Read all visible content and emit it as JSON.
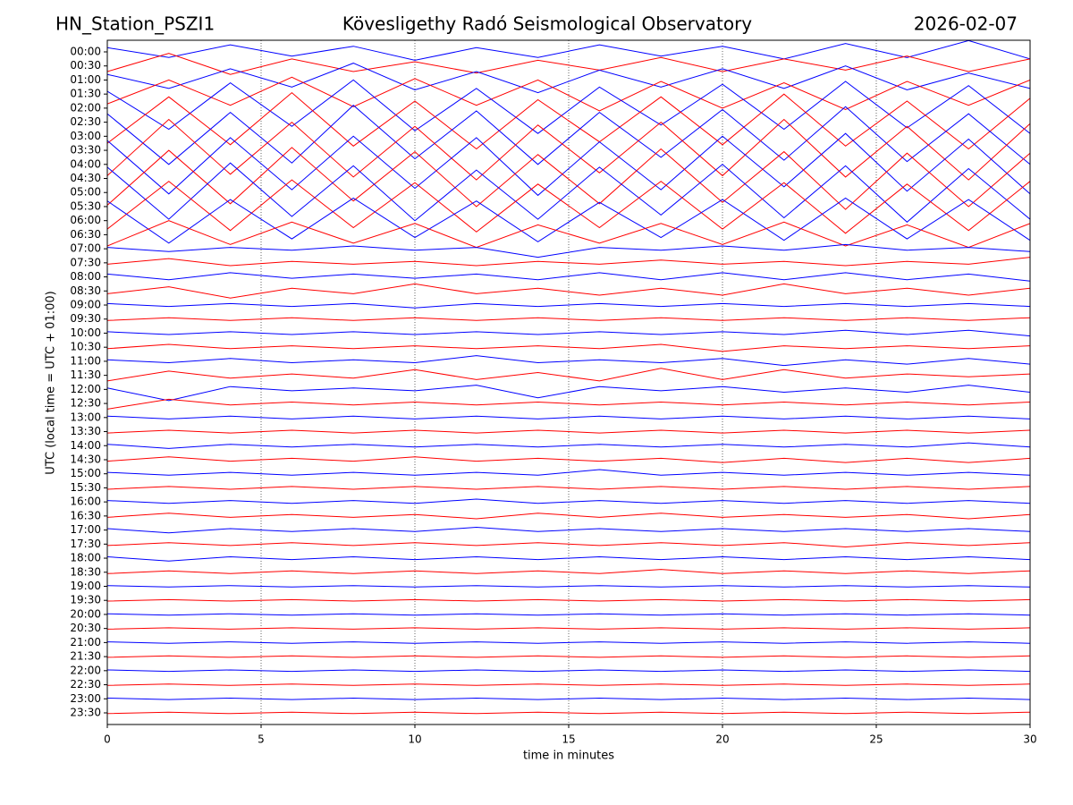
{
  "chart_data": {
    "type": "helicorder",
    "title": "Kövesligethy Radó Seismological Observatory",
    "station": "HN_Station_PSZI1",
    "date": "2026-02-07",
    "xlabel": "time in minutes",
    "ylabel": "UTC (local time = UTC + 01:00)",
    "xlim": [
      0,
      30
    ],
    "xticks": [
      0,
      5,
      10,
      15,
      20,
      25,
      30
    ],
    "grid": true,
    "x": [
      0,
      2,
      4,
      6,
      8,
      10,
      12,
      14,
      16,
      18,
      20,
      22,
      24,
      26,
      28,
      30
    ],
    "series": [
      {
        "name": "00:00",
        "color": "#0000ff",
        "values": [
          0.3,
          -0.4,
          0.5,
          -0.3,
          0.4,
          -0.6,
          0.3,
          -0.4,
          0.5,
          -0.3,
          0.4,
          -0.5,
          0.6,
          -0.4,
          0.8,
          -0.5
        ]
      },
      {
        "name": "00:30",
        "color": "#ff0000",
        "values": [
          -0.4,
          0.9,
          -0.6,
          0.5,
          -0.4,
          0.3,
          -0.5,
          0.4,
          -0.3,
          0.6,
          -0.4,
          0.5,
          -0.3,
          0.7,
          -0.4,
          0.5
        ]
      },
      {
        "name": "01:00",
        "color": "#0000ff",
        "values": [
          0.4,
          -0.6,
          0.8,
          -0.5,
          1.2,
          -0.7,
          0.6,
          -0.9,
          0.7,
          -0.5,
          0.8,
          -0.6,
          1.0,
          -0.7,
          0.5,
          -0.6
        ]
      },
      {
        "name": "01:30",
        "color": "#ff0000",
        "values": [
          -0.7,
          1.0,
          -0.8,
          1.2,
          -0.9,
          1.1,
          -0.8,
          1.0,
          -1.2,
          0.9,
          -1.0,
          0.8,
          -1.1,
          0.9,
          -0.8,
          1.0
        ]
      },
      {
        "name": "02:00",
        "color": "#0000ff",
        "values": [
          1.2,
          -1.5,
          1.8,
          -1.3,
          2.0,
          -1.6,
          1.4,
          -1.8,
          1.5,
          -1.2,
          1.7,
          -1.5,
          1.9,
          -1.4,
          1.6,
          -1.8
        ]
      },
      {
        "name": "02:30",
        "color": "#ff0000",
        "values": [
          -1.5,
          1.8,
          -1.6,
          2.1,
          -1.7,
          1.5,
          -1.9,
          1.6,
          -1.4,
          1.8,
          -1.6,
          2.0,
          -1.7,
          1.5,
          -1.9,
          1.7
        ]
      },
      {
        "name": "03:00",
        "color": "#0000ff",
        "values": [
          1.6,
          -2.0,
          1.7,
          -1.9,
          2.2,
          -1.6,
          1.8,
          -2.0,
          1.7,
          -1.5,
          1.9,
          -1.7,
          2.1,
          -1.8,
          1.6,
          -2.0
        ]
      },
      {
        "name": "03:30",
        "color": "#ff0000",
        "values": [
          -1.8,
          2.2,
          -1.7,
          2.0,
          -1.9,
          1.7,
          -2.1,
          1.8,
          -1.6,
          2.0,
          -1.8,
          2.2,
          -1.9,
          1.7,
          -2.1,
          1.9
        ]
      },
      {
        "name": "04:00",
        "color": "#0000ff",
        "values": [
          1.7,
          -2.1,
          1.9,
          -1.8,
          2.0,
          -1.7,
          1.9,
          -2.2,
          1.6,
          -1.8,
          2.0,
          -1.6,
          2.2,
          -1.9,
          1.8,
          -2.1
        ]
      },
      {
        "name": "04:30",
        "color": "#ff0000",
        "values": [
          -1.9,
          2.0,
          -1.8,
          2.2,
          -1.6,
          1.9,
          -2.0,
          1.7,
          -1.8,
          2.1,
          -1.7,
          1.9,
          -2.2,
          1.8,
          -2.0,
          1.8
        ]
      },
      {
        "name": "05:00",
        "color": "#0000ff",
        "values": [
          1.8,
          -1.9,
          2.1,
          -1.7,
          1.9,
          -2.0,
          1.6,
          -1.9,
          1.8,
          -1.6,
          2.0,
          -1.8,
          1.9,
          -2.1,
          1.7,
          -1.9
        ]
      },
      {
        "name": "05:30",
        "color": "#ff0000",
        "values": [
          -1.6,
          1.8,
          -1.7,
          1.9,
          -1.5,
          1.7,
          -1.8,
          1.6,
          -1.5,
          1.8,
          -1.6,
          1.7,
          -1.9,
          1.6,
          -1.7,
          1.8
        ]
      },
      {
        "name": "06:00",
        "color": "#0000ff",
        "values": [
          1.4,
          -1.6,
          1.5,
          -1.3,
          1.6,
          -1.2,
          1.4,
          -1.5,
          1.3,
          -1.2,
          1.5,
          -1.4,
          1.6,
          -1.3,
          1.5,
          -1.4
        ]
      },
      {
        "name": "06:30",
        "color": "#ff0000",
        "values": [
          -0.8,
          1.0,
          -0.7,
          0.9,
          -0.6,
          0.8,
          -0.9,
          0.7,
          -0.6,
          0.8,
          -0.7,
          0.9,
          -0.8,
          0.7,
          -0.9,
          0.8
        ]
      },
      {
        "name": "07:00",
        "color": "#0000ff",
        "values": [
          0.1,
          -0.2,
          0.1,
          -0.1,
          0.2,
          -0.1,
          0.1,
          -0.6,
          0.1,
          -0.1,
          0.2,
          -0.1,
          0.3,
          -0.1,
          0.1,
          -0.2
        ]
      },
      {
        "name": "07:30",
        "color": "#ff0000",
        "values": [
          -0.1,
          0.3,
          -0.2,
          0.1,
          -0.1,
          0.1,
          -0.2,
          0.1,
          -0.1,
          0.2,
          -0.1,
          0.1,
          -0.2,
          0.1,
          -0.1,
          0.4
        ]
      },
      {
        "name": "08:00",
        "color": "#0000ff",
        "values": [
          0.2,
          -0.2,
          0.3,
          -0.1,
          0.2,
          -0.1,
          0.2,
          -0.2,
          0.3,
          -0.2,
          0.3,
          -0.2,
          0.3,
          -0.2,
          0.2,
          -0.3
        ]
      },
      {
        "name": "08:30",
        "color": "#ff0000",
        "values": [
          -0.2,
          0.3,
          -0.5,
          0.2,
          -0.2,
          0.5,
          -0.2,
          0.2,
          -0.3,
          0.2,
          -0.3,
          0.5,
          -0.2,
          0.2,
          -0.3,
          0.2
        ]
      },
      {
        "name": "09:00",
        "color": "#0000ff",
        "values": [
          0.1,
          -0.1,
          0.1,
          -0.1,
          0.1,
          -0.2,
          0.1,
          -0.1,
          0.1,
          -0.1,
          0.1,
          -0.1,
          0.1,
          -0.1,
          0.1,
          -0.1
        ]
      },
      {
        "name": "09:30",
        "color": "#ff0000",
        "values": [
          -0.1,
          0.1,
          -0.1,
          0.1,
          -0.1,
          0.1,
          -0.1,
          0.1,
          -0.1,
          0.1,
          -0.1,
          0.1,
          -0.1,
          0.1,
          -0.1,
          0.1
        ]
      },
      {
        "name": "10:00",
        "color": "#0000ff",
        "values": [
          0.1,
          -0.1,
          0.1,
          -0.1,
          0.1,
          -0.1,
          0.1,
          -0.1,
          0.1,
          -0.1,
          0.1,
          -0.1,
          0.2,
          -0.1,
          0.2,
          -0.2
        ]
      },
      {
        "name": "10:30",
        "color": "#ff0000",
        "values": [
          -0.1,
          0.2,
          -0.1,
          0.1,
          -0.1,
          0.1,
          -0.1,
          0.1,
          -0.1,
          0.2,
          -0.3,
          0.1,
          -0.1,
          0.1,
          -0.1,
          0.1
        ]
      },
      {
        "name": "11:00",
        "color": "#0000ff",
        "values": [
          0.1,
          -0.1,
          0.2,
          -0.1,
          0.1,
          -0.1,
          0.4,
          -0.1,
          0.1,
          -0.1,
          0.2,
          -0.3,
          0.1,
          -0.2,
          0.2,
          -0.2
        ]
      },
      {
        "name": "11:30",
        "color": "#ff0000",
        "values": [
          -0.4,
          0.3,
          -0.2,
          0.1,
          -0.2,
          0.4,
          -0.3,
          0.2,
          -0.4,
          0.5,
          -0.3,
          0.4,
          -0.2,
          0.1,
          -0.1,
          0.1
        ]
      },
      {
        "name": "12:00",
        "color": "#0000ff",
        "values": [
          0.1,
          -0.8,
          0.2,
          -0.1,
          0.1,
          -0.1,
          0.3,
          -0.6,
          0.2,
          -0.1,
          0.2,
          -0.2,
          0.1,
          -0.2,
          0.3,
          -0.2
        ]
      },
      {
        "name": "12:30",
        "color": "#ff0000",
        "values": [
          -0.4,
          0.3,
          -0.1,
          0.1,
          -0.1,
          0.1,
          -0.1,
          0.1,
          -0.1,
          0.1,
          -0.1,
          0.1,
          -0.1,
          0.1,
          -0.1,
          0.1
        ]
      },
      {
        "name": "13:00",
        "color": "#0000ff",
        "values": [
          0.1,
          -0.1,
          0.1,
          -0.1,
          0.1,
          -0.1,
          0.1,
          -0.1,
          0.1,
          -0.1,
          0.1,
          -0.1,
          0.1,
          -0.1,
          0.1,
          -0.1
        ]
      },
      {
        "name": "13:30",
        "color": "#ff0000",
        "values": [
          -0.1,
          0.1,
          -0.1,
          0.1,
          -0.1,
          0.1,
          -0.1,
          0.1,
          -0.1,
          0.1,
          -0.1,
          0.1,
          -0.1,
          0.1,
          -0.1,
          0.1
        ]
      },
      {
        "name": "14:00",
        "color": "#0000ff",
        "values": [
          0.1,
          -0.2,
          0.1,
          -0.1,
          0.1,
          -0.1,
          0.1,
          -0.1,
          0.1,
          -0.1,
          0.1,
          -0.1,
          0.1,
          -0.1,
          0.2,
          -0.1
        ]
      },
      {
        "name": "14:30",
        "color": "#ff0000",
        "values": [
          -0.1,
          0.2,
          -0.1,
          0.1,
          -0.1,
          0.2,
          -0.1,
          0.1,
          -0.1,
          0.1,
          -0.2,
          0.1,
          -0.2,
          0.1,
          -0.2,
          0.1
        ]
      },
      {
        "name": "15:00",
        "color": "#0000ff",
        "values": [
          0.1,
          -0.1,
          0.1,
          -0.1,
          0.1,
          -0.1,
          0.1,
          -0.1,
          0.3,
          -0.1,
          0.1,
          -0.1,
          0.1,
          -0.1,
          0.1,
          -0.1
        ]
      },
      {
        "name": "15:30",
        "color": "#ff0000",
        "values": [
          -0.1,
          0.1,
          -0.1,
          0.1,
          -0.1,
          0.1,
          -0.1,
          0.1,
          -0.1,
          0.1,
          -0.1,
          0.1,
          -0.1,
          0.1,
          -0.1,
          0.1
        ]
      },
      {
        "name": "16:00",
        "color": "#0000ff",
        "values": [
          0.1,
          -0.1,
          0.1,
          -0.1,
          0.1,
          -0.1,
          0.2,
          -0.1,
          0.1,
          -0.1,
          0.1,
          -0.1,
          0.1,
          -0.1,
          0.1,
          -0.1
        ]
      },
      {
        "name": "16:30",
        "color": "#ff0000",
        "values": [
          -0.1,
          0.2,
          -0.1,
          0.1,
          -0.1,
          0.1,
          -0.2,
          0.2,
          -0.1,
          0.2,
          -0.1,
          0.1,
          -0.1,
          0.1,
          -0.2,
          0.1
        ]
      },
      {
        "name": "17:00",
        "color": "#0000ff",
        "values": [
          0.1,
          -0.2,
          0.1,
          -0.1,
          0.1,
          -0.1,
          0.2,
          -0.1,
          0.1,
          -0.1,
          0.1,
          -0.1,
          0.1,
          -0.1,
          0.1,
          -0.1
        ]
      },
      {
        "name": "17:30",
        "color": "#ff0000",
        "values": [
          -0.1,
          0.1,
          -0.1,
          0.1,
          -0.1,
          0.1,
          -0.1,
          0.1,
          -0.1,
          0.1,
          -0.1,
          0.1,
          -0.2,
          0.1,
          -0.1,
          0.1
        ]
      },
      {
        "name": "18:00",
        "color": "#0000ff",
        "values": [
          0.1,
          -0.2,
          0.1,
          -0.1,
          0.1,
          -0.1,
          0.1,
          -0.1,
          0.1,
          -0.1,
          0.1,
          -0.1,
          0.1,
          -0.1,
          0.1,
          -0.1
        ]
      },
      {
        "name": "18:30",
        "color": "#ff0000",
        "values": [
          -0.1,
          0.1,
          -0.1,
          0.1,
          -0.1,
          0.1,
          -0.1,
          0.1,
          -0.1,
          0.2,
          -0.1,
          0.1,
          -0.1,
          0.1,
          -0.1,
          0.1
        ]
      },
      {
        "name": "19:00",
        "color": "#0000ff",
        "values": [
          0.05,
          -0.05,
          0.05,
          -0.05,
          0.05,
          -0.05,
          0.05,
          -0.05,
          0.05,
          -0.05,
          0.05,
          -0.05,
          0.05,
          -0.05,
          0.05,
          -0.05
        ]
      },
      {
        "name": "19:30",
        "color": "#ff0000",
        "values": [
          -0.05,
          0.05,
          -0.05,
          0.05,
          -0.05,
          0.05,
          -0.05,
          0.05,
          -0.05,
          0.05,
          -0.05,
          0.05,
          -0.05,
          0.05,
          -0.05,
          0.05
        ]
      },
      {
        "name": "20:00",
        "color": "#0000ff",
        "values": [
          0.05,
          -0.05,
          0.05,
          -0.05,
          0.05,
          -0.05,
          0.05,
          -0.05,
          0.05,
          -0.05,
          0.05,
          -0.05,
          0.05,
          -0.05,
          0.05,
          -0.05
        ]
      },
      {
        "name": "20:30",
        "color": "#ff0000",
        "values": [
          -0.05,
          0.05,
          -0.05,
          0.05,
          -0.05,
          0.05,
          -0.05,
          0.05,
          -0.05,
          0.05,
          -0.05,
          0.05,
          -0.05,
          0.05,
          -0.05,
          0.05
        ]
      },
      {
        "name": "21:00",
        "color": "#0000ff",
        "values": [
          0.05,
          -0.05,
          0.05,
          -0.05,
          0.05,
          -0.05,
          0.05,
          -0.05,
          0.05,
          -0.05,
          0.05,
          -0.05,
          0.05,
          -0.05,
          0.05,
          -0.05
        ]
      },
      {
        "name": "21:30",
        "color": "#ff0000",
        "values": [
          -0.05,
          0.05,
          -0.05,
          0.05,
          -0.05,
          0.05,
          -0.05,
          0.05,
          -0.05,
          0.05,
          -0.05,
          0.05,
          -0.05,
          0.05,
          -0.05,
          0.05
        ]
      },
      {
        "name": "22:00",
        "color": "#0000ff",
        "values": [
          0.05,
          -0.05,
          0.05,
          -0.05,
          0.05,
          -0.05,
          0.05,
          -0.05,
          0.05,
          -0.05,
          0.05,
          -0.05,
          0.05,
          -0.05,
          0.05,
          -0.05
        ]
      },
      {
        "name": "22:30",
        "color": "#ff0000",
        "values": [
          -0.05,
          0.05,
          -0.05,
          0.05,
          -0.05,
          0.05,
          -0.05,
          0.05,
          -0.05,
          0.05,
          -0.05,
          0.05,
          -0.05,
          0.05,
          -0.05,
          0.05
        ]
      },
      {
        "name": "23:00",
        "color": "#0000ff",
        "values": [
          0.05,
          -0.05,
          0.05,
          -0.05,
          0.05,
          -0.05,
          0.05,
          -0.05,
          0.05,
          -0.05,
          0.05,
          -0.05,
          0.05,
          -0.05,
          0.05,
          -0.05
        ]
      },
      {
        "name": "23:30",
        "color": "#ff0000",
        "values": [
          -0.05,
          0.05,
          -0.05,
          0.05,
          -0.05,
          0.05,
          -0.05,
          0.05,
          -0.05,
          0.05,
          -0.05,
          0.05,
          -0.05,
          0.05,
          -0.05,
          0.05
        ]
      }
    ]
  }
}
